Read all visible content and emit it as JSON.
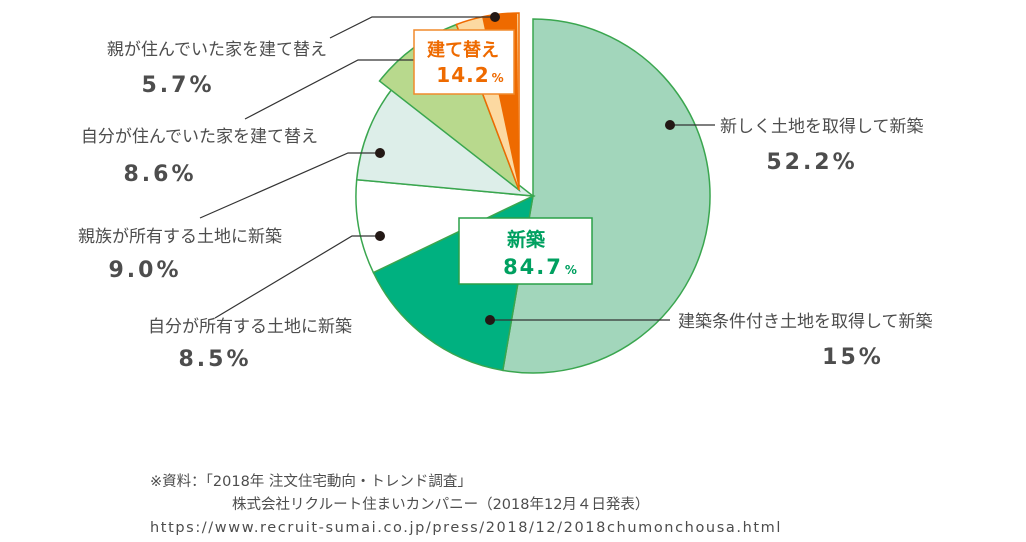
{
  "chart_data": {
    "type": "pie",
    "slices": [
      {
        "label": "新しく土地を取得して新築",
        "display_value": "52.2%",
        "value": 52.2,
        "color": "#a2d6bb"
      },
      {
        "label": "建築条件付き土地を取得して新築",
        "display_value": "15%",
        "value": 15.0,
        "color": "#00b180"
      },
      {
        "label": "自分が所有する土地に新築",
        "display_value": "8.5%",
        "value": 8.5,
        "color": "#ffffff"
      },
      {
        "label": "親族が所有する土地に新築",
        "display_value": "9.0%",
        "value": 9.0,
        "color": "#ddeee9"
      },
      {
        "label": "自分が住んでいた家を建て替え",
        "display_value": "8.6%",
        "value": 8.6,
        "color": "#b8d98d"
      },
      {
        "label": "親が住んでいた家を建て替え",
        "display_value": "5.7%",
        "value": 5.7,
        "color": "#fcd9a1"
      }
    ],
    "groups": [
      {
        "label": "新築",
        "value_number": "84.7",
        "value_unit": "%",
        "color": "#00a060"
      },
      {
        "label": "建て替え",
        "value_number": "14.2",
        "value_unit": "%",
        "color": "#ee6a00"
      }
    ]
  },
  "source": {
    "line1": "※資料：「2018年 注文住宅動向・トレンド調査」",
    "line2": "株式会社リクルート住まいカンパニー（2018年12月４日発表）",
    "line3": "https://www.recruit-sumai.co.jp/press/2018/12/2018chumonchousa.html"
  }
}
